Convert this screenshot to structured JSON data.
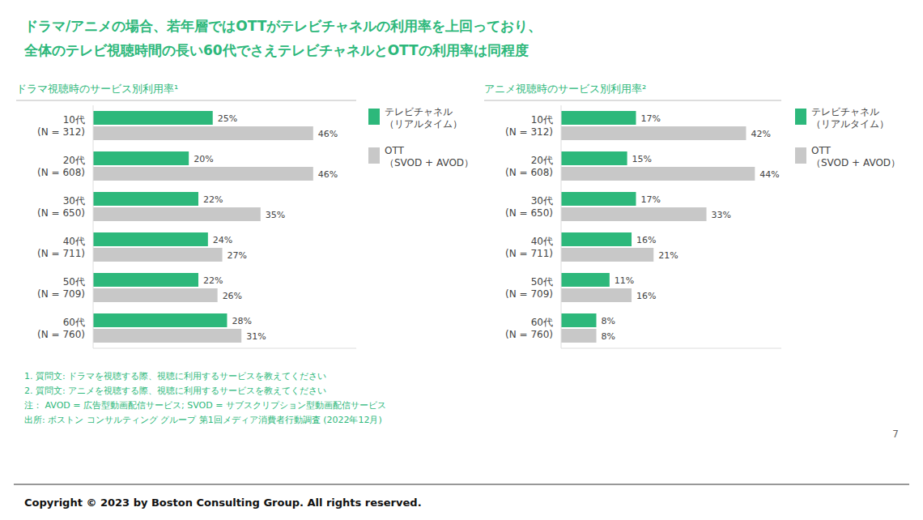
{
  "title": [
    "ドラマ/アニメの場合、若年層ではOTTがテレビチャネルの利用率を上回っており、",
    "全体のテレビ視聴時間の長い60代でさえテレビチャネルとOTTの利用率は同程度"
  ],
  "notes": [
    "1.      質問文: ドラマを視聴する際、視聴に利用するサービスを教えてください",
    "2.      質問文: アニメを視聴する際、視聴に利用するサービスを教えてください",
    "注：    AVOD = 広告型動画配信サービス; SVOD = サブスクリプション型動画配信サービス",
    "出所: ボストン コンサルティング グループ 第1回メディア消費者行動調査 (2022年12月)"
  ],
  "page_number": "7",
  "copyright": "Copyright © 2023 by Boston Consulting Group. All rights reserved.",
  "chart_data": [
    {
      "type": "bar",
      "orientation": "horizontal",
      "title": "ドラマ視聴時のサービス別利用率¹",
      "categories": [
        "10代\n(N = 312)",
        "20代\n(N = 608)",
        "30代\n(N = 650)",
        "40代\n(N = 711)",
        "50代\n(N = 709)",
        "60代\n(N = 760)"
      ],
      "series": [
        {
          "name": "テレビチャネル\n（リアルタイム）",
          "color": "#2db87b",
          "values": [
            25,
            20,
            22,
            24,
            22,
            28
          ],
          "value_labels": [
            "25%",
            "20%",
            "22%",
            "24%",
            "22%",
            "28%"
          ]
        },
        {
          "name": "OTT\n（SVOD + AVOD）",
          "color": "#c8c8c8",
          "values": [
            46,
            46,
            35,
            27,
            26,
            31
          ],
          "value_labels": [
            "46%",
            "46%",
            "35%",
            "27%",
            "26%",
            "31%"
          ]
        }
      ],
      "xlim": [
        0,
        55
      ],
      "data_labels": true,
      "tick_labels": "y",
      "grid": false,
      "legend": "right"
    },
    {
      "type": "bar",
      "orientation": "horizontal",
      "title": "アニメ視聴時のサービス別利用率²",
      "categories": [
        "10代\n(N = 312)",
        "20代\n(N = 608)",
        "30代\n(N = 650)",
        "40代\n(N = 711)",
        "50代\n(N = 709)",
        "60代\n(N = 760)"
      ],
      "series": [
        {
          "name": "テレビチャネル\n（リアルタイム）",
          "color": "#2db87b",
          "values": [
            17,
            15,
            17,
            16,
            11,
            8
          ],
          "value_labels": [
            "17%",
            "15%",
            "17%",
            "16%",
            "11%",
            "8%"
          ]
        },
        {
          "name": "OTT\n（SVOD + AVOD）",
          "color": "#c8c8c8",
          "values": [
            42,
            44,
            33,
            21,
            16,
            8
          ],
          "value_labels": [
            "42%",
            "44%",
            "33%",
            "21%",
            "16%",
            "8%"
          ]
        }
      ],
      "xlim": [
        0,
        50
      ],
      "data_labels": true,
      "tick_labels": "y",
      "grid": false,
      "legend": "right"
    }
  ]
}
